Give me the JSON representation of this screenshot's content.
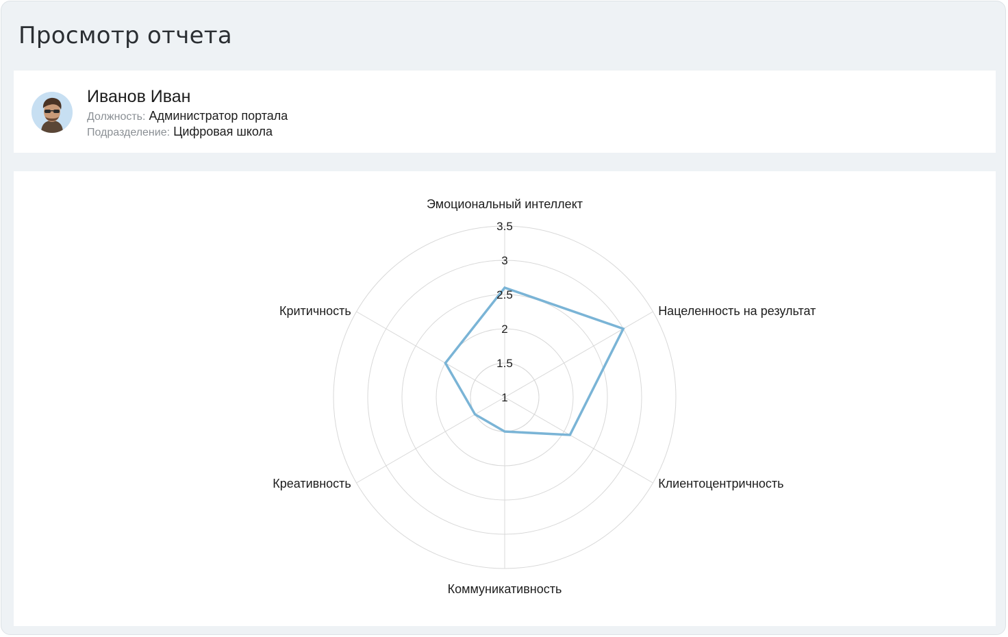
{
  "page": {
    "title": "Просмотр отчета"
  },
  "profile": {
    "name": "Иванов Иван",
    "position_label": "Должность:",
    "position_value": "Администратор портала",
    "department_label": "Подразделение:",
    "department_value": "Цифровая школа"
  },
  "colors": {
    "series": "#7ab4d6",
    "grid": "#d8d8d8",
    "background": "#eef2f5"
  },
  "chart_data": {
    "type": "radar",
    "categories": [
      "Эмоциональный интеллект",
      "Нацеленность на результат",
      "Клиентоцентричность",
      "Коммуникативность",
      "Креативность",
      "Критичность"
    ],
    "values": [
      2.6,
      3.0,
      2.1,
      1.5,
      1.5,
      2.0
    ],
    "ticks": [
      "1",
      "1.5",
      "2",
      "2.5",
      "3",
      "3.5"
    ],
    "rmin": 1,
    "rmax": 3.5,
    "grid": true
  }
}
